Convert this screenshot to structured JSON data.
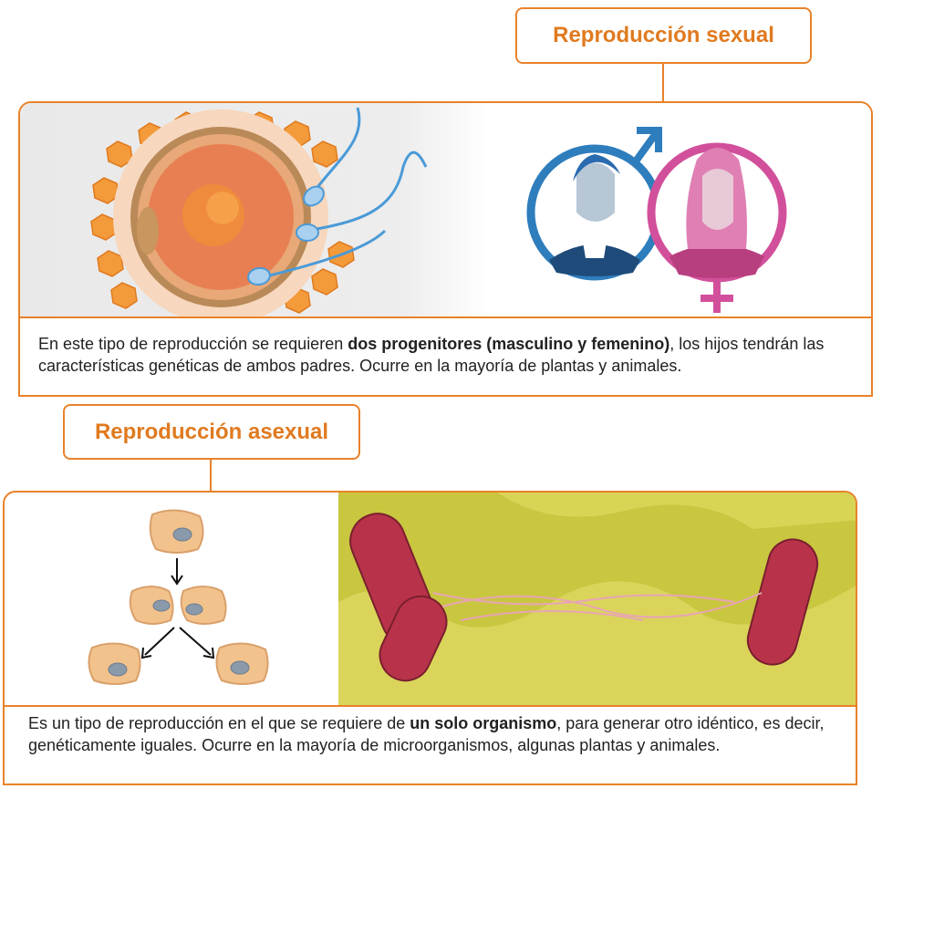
{
  "sexual": {
    "title": "Reproducción sexual",
    "text_before": "En este tipo de reproducción se requieren ",
    "text_bold": "dos progenitores (masculino y femenino)",
    "text_after": ", los hijos tendrán las características genéticas de ambos padres. Ocurre en la mayoría de plantas y animales.",
    "colors": {
      "male": "#2e7dbd",
      "female": "#d2509b",
      "egg": "#f08a3c"
    },
    "icons": [
      "egg-cell-illustration",
      "sperm-icon",
      "male-symbol-icon",
      "female-symbol-icon",
      "man-avatar-icon",
      "woman-avatar-icon"
    ]
  },
  "asexual": {
    "title": "Reproducción asexual",
    "text_before": "Es un tipo de reproducción en el que se requiere de ",
    "text_bold": "un solo organismo",
    "text_after": ", para generar otro idéntico, es decir, genéticamente iguales. Ocurre en la mayoría de microorganismos, algunas plantas y animales.",
    "colors": {
      "cell": "#f2c28d",
      "nucleus": "#8a9aab",
      "bacteria": "#b8334a",
      "background": "#c9c640"
    },
    "icons": [
      "cell-division-diagram",
      "bacteria-micrograph"
    ]
  },
  "theme": {
    "accent": "#e8822a",
    "title_text": "#e07a1f"
  }
}
